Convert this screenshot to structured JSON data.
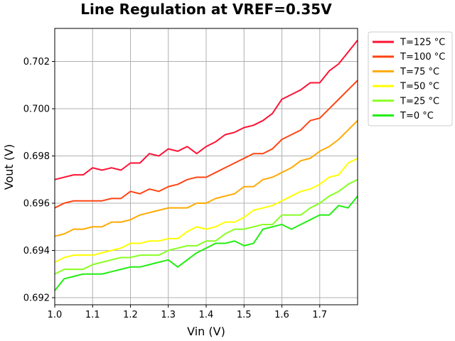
{
  "chart_data": {
    "type": "line",
    "title": "Line Regulation at VREF=0.35V",
    "xlabel": "Vin (V)",
    "ylabel": "Vout (V)",
    "xlim": [
      1.0,
      1.8
    ],
    "ylim": [
      0.6917,
      0.7034
    ],
    "x_ticks": [
      1.0,
      1.1,
      1.2,
      1.3,
      1.4,
      1.5,
      1.6,
      1.7
    ],
    "x_tick_labels": [
      "1.0",
      "1.1",
      "1.2",
      "1.3",
      "1.4",
      "1.5",
      "1.6",
      "1.7"
    ],
    "y_ticks": [
      0.692,
      0.694,
      0.696,
      0.698,
      0.7,
      0.702
    ],
    "y_tick_labels": [
      "0.692",
      "0.694",
      "0.696",
      "0.698",
      "0.700",
      "0.702"
    ],
    "grid": true,
    "legend_position": "outside-top-right",
    "x": [
      1.0,
      1.025,
      1.05,
      1.075,
      1.1,
      1.125,
      1.15,
      1.175,
      1.2,
      1.225,
      1.25,
      1.275,
      1.3,
      1.325,
      1.35,
      1.375,
      1.4,
      1.425,
      1.45,
      1.475,
      1.5,
      1.525,
      1.55,
      1.575,
      1.6,
      1.625,
      1.65,
      1.675,
      1.7,
      1.725,
      1.75,
      1.775,
      1.8
    ],
    "series": [
      {
        "name": "T=125 °C",
        "color": "#ff1133",
        "values": [
          0.697,
          0.6971,
          0.6972,
          0.6972,
          0.6975,
          0.6974,
          0.6975,
          0.6974,
          0.6977,
          0.6977,
          0.6981,
          0.698,
          0.6983,
          0.6982,
          0.6984,
          0.6981,
          0.6984,
          0.6986,
          0.6989,
          0.699,
          0.6992,
          0.6993,
          0.6995,
          0.6998,
          0.7004,
          0.7006,
          0.7008,
          0.7011,
          0.7011,
          0.7016,
          0.7019,
          0.7024,
          0.7029
        ]
      },
      {
        "name": "T=100 °C",
        "color": "#ff4411",
        "values": [
          0.6958,
          0.696,
          0.6961,
          0.6961,
          0.6961,
          0.6961,
          0.6962,
          0.6962,
          0.6965,
          0.6964,
          0.6966,
          0.6965,
          0.6967,
          0.6968,
          0.697,
          0.6971,
          0.6971,
          0.6973,
          0.6975,
          0.6977,
          0.6979,
          0.6981,
          0.6981,
          0.6983,
          0.6987,
          0.6989,
          0.6991,
          0.6995,
          0.6996,
          0.7,
          0.7004,
          0.7008,
          0.7012
        ]
      },
      {
        "name": "T=75 °C",
        "color": "#ffaa00",
        "values": [
          0.6946,
          0.6947,
          0.6949,
          0.6949,
          0.695,
          0.695,
          0.6952,
          0.6952,
          0.6953,
          0.6955,
          0.6956,
          0.6957,
          0.6958,
          0.6958,
          0.6958,
          0.696,
          0.696,
          0.6962,
          0.6963,
          0.6964,
          0.6967,
          0.6967,
          0.697,
          0.6971,
          0.6973,
          0.6975,
          0.6978,
          0.6979,
          0.6982,
          0.6984,
          0.6987,
          0.6991,
          0.6995
        ]
      },
      {
        "name": "T=50 °C",
        "color": "#ffff00",
        "values": [
          0.6935,
          0.6937,
          0.6938,
          0.6938,
          0.6938,
          0.6939,
          0.694,
          0.6941,
          0.6943,
          0.6943,
          0.6944,
          0.6944,
          0.6945,
          0.6945,
          0.6948,
          0.695,
          0.6949,
          0.695,
          0.6952,
          0.6952,
          0.6954,
          0.6957,
          0.6958,
          0.6959,
          0.6961,
          0.6963,
          0.6965,
          0.6966,
          0.6968,
          0.6971,
          0.6972,
          0.6977,
          0.6979
        ]
      },
      {
        "name": "T=25 °C",
        "color": "#88ff22",
        "values": [
          0.693,
          0.6932,
          0.6932,
          0.6932,
          0.6934,
          0.6935,
          0.6936,
          0.6937,
          0.6937,
          0.6938,
          0.6938,
          0.6938,
          0.694,
          0.6941,
          0.6942,
          0.6942,
          0.6944,
          0.6944,
          0.6947,
          0.6949,
          0.6949,
          0.695,
          0.6951,
          0.6951,
          0.6955,
          0.6955,
          0.6955,
          0.6958,
          0.696,
          0.6963,
          0.6965,
          0.6968,
          0.697
        ]
      },
      {
        "name": "T=0 °C",
        "color": "#22ee11",
        "values": [
          0.6923,
          0.6928,
          0.6929,
          0.693,
          0.693,
          0.693,
          0.6931,
          0.6932,
          0.6933,
          0.6933,
          0.6934,
          0.6935,
          0.6936,
          0.6933,
          0.6936,
          0.6939,
          0.6941,
          0.6943,
          0.6943,
          0.6944,
          0.6942,
          0.6943,
          0.6949,
          0.695,
          0.6951,
          0.6949,
          0.6951,
          0.6953,
          0.6955,
          0.6955,
          0.6959,
          0.6958,
          0.6963
        ]
      }
    ]
  }
}
